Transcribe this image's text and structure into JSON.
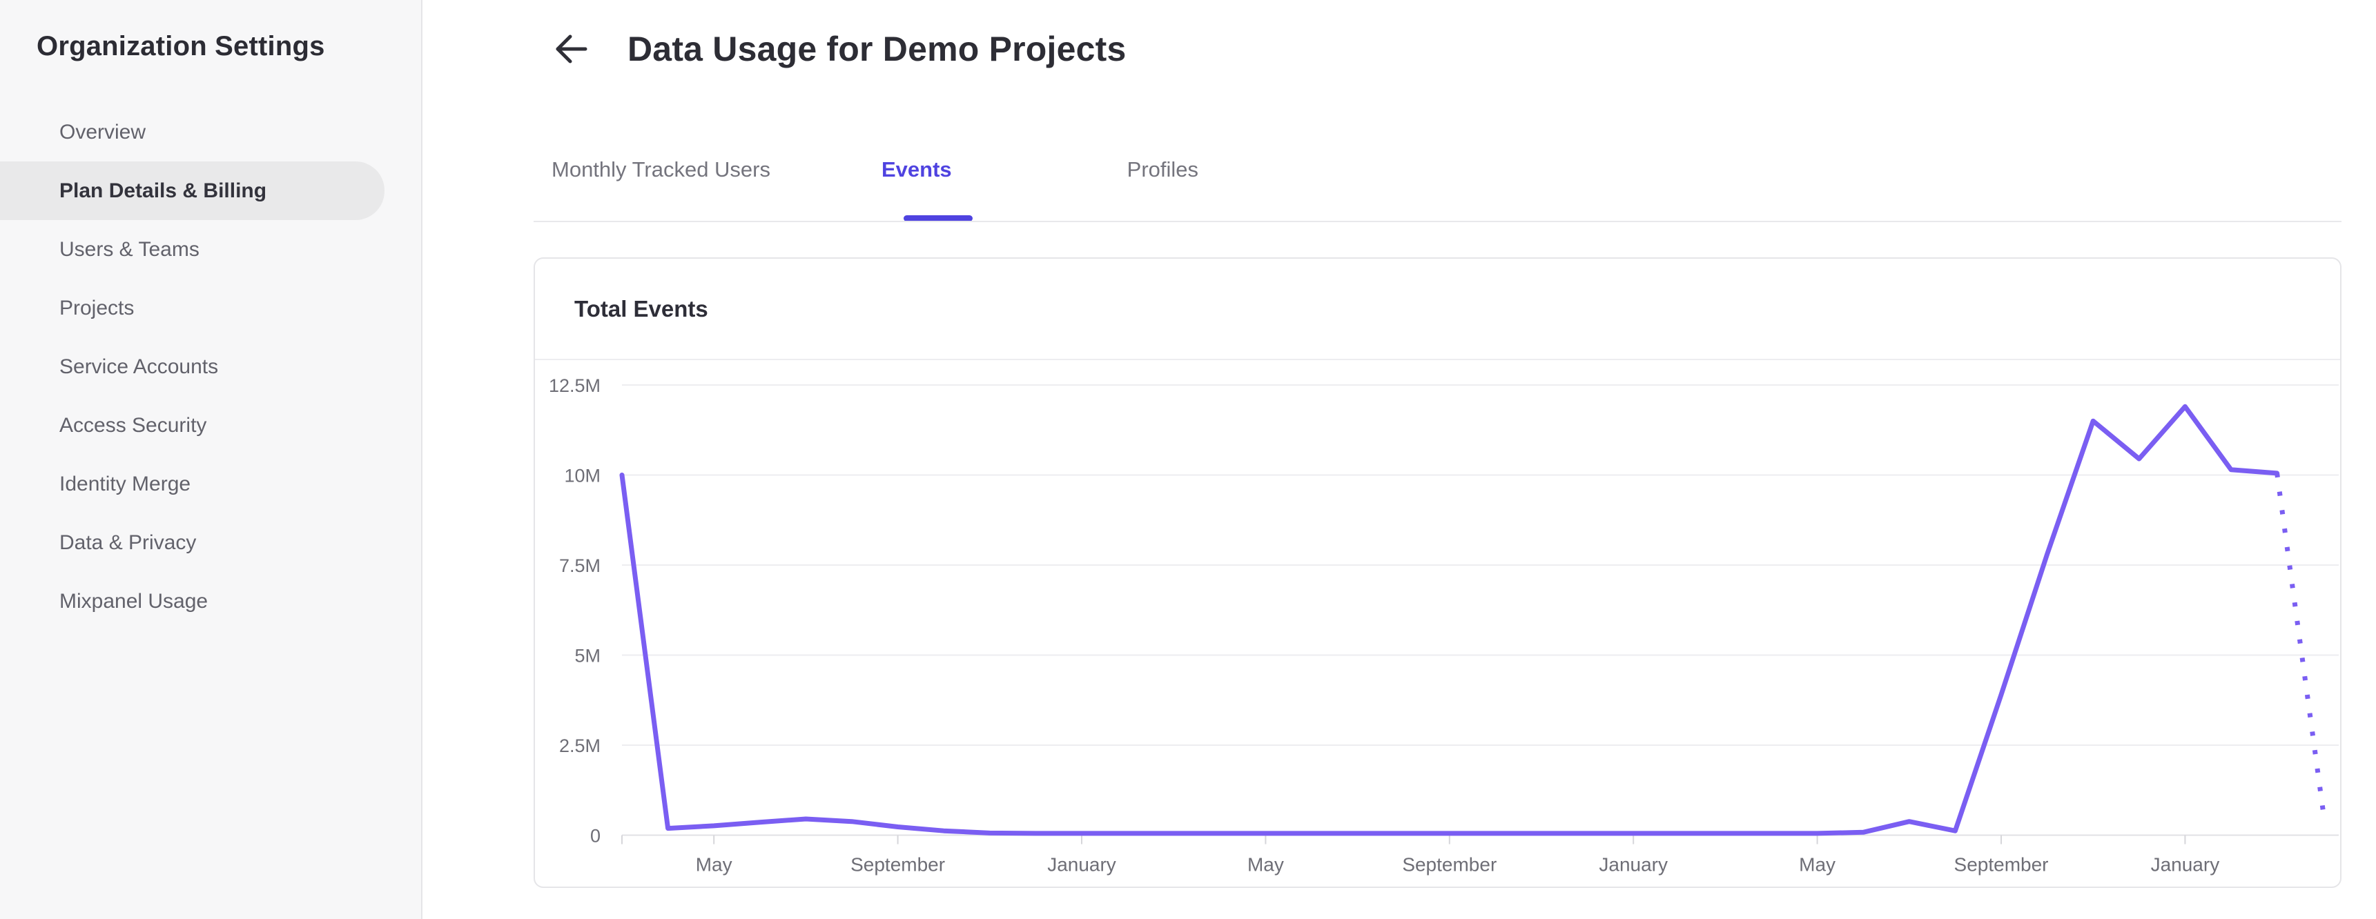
{
  "sidebar": {
    "title": "Organization Settings",
    "items": [
      {
        "label": "Overview",
        "selected": false
      },
      {
        "label": "Plan Details & Billing",
        "selected": true
      },
      {
        "label": "Users & Teams",
        "selected": false
      },
      {
        "label": "Projects",
        "selected": false
      },
      {
        "label": "Service Accounts",
        "selected": false
      },
      {
        "label": "Access Security",
        "selected": false
      },
      {
        "label": "Identity Merge",
        "selected": false
      },
      {
        "label": "Data & Privacy",
        "selected": false
      },
      {
        "label": "Mixpanel Usage",
        "selected": false
      }
    ]
  },
  "header": {
    "title": "Data Usage for Demo Projects",
    "back_icon": "left-arrow-icon"
  },
  "tabs": {
    "items": [
      {
        "label": "Monthly Tracked Users",
        "active": false
      },
      {
        "label": "Events",
        "active": true
      },
      {
        "label": "Profiles",
        "active": false
      }
    ]
  },
  "card": {
    "title": "Total Events"
  },
  "colors": {
    "accent": "#4f43e0",
    "chart_line": "#7a5ef2",
    "sidebar_selected_bg": "#e9e9ea",
    "grid_line": "#ededf0",
    "axis_line": "#e1e1e5",
    "tick_mark": "#d6d6da",
    "axis_label": "#6e6e76"
  },
  "chart_data": {
    "type": "line",
    "title": "Total Events",
    "xlabel": "",
    "ylabel": "",
    "unit": "millions of events",
    "ylim": [
      0,
      12.5
    ],
    "grid": "horizontal",
    "legend_position": "none",
    "x_unit": "month_index",
    "y_ticks": [
      {
        "label": "0",
        "value": 0
      },
      {
        "label": "2.5M",
        "value": 2.5
      },
      {
        "label": "5M",
        "value": 5
      },
      {
        "label": "7.5M",
        "value": 7.5
      },
      {
        "label": "10M",
        "value": 10
      },
      {
        "label": "12.5M",
        "value": 12.5
      }
    ],
    "x_ticks": [
      {
        "label": "May",
        "index": 2
      },
      {
        "label": "September",
        "index": 6
      },
      {
        "label": "January",
        "index": 10
      },
      {
        "label": "May",
        "index": 14
      },
      {
        "label": "September",
        "index": 18
      },
      {
        "label": "January",
        "index": 22
      },
      {
        "label": "May",
        "index": 26
      },
      {
        "label": "September",
        "index": 30
      },
      {
        "label": "January",
        "index": 34
      }
    ],
    "series": [
      {
        "name": "Total Events",
        "style": "solid",
        "points": [
          [
            0,
            10.0
          ],
          [
            1,
            0.19
          ],
          [
            2,
            0.26
          ],
          [
            3,
            0.36
          ],
          [
            4,
            0.45
          ],
          [
            5,
            0.38
          ],
          [
            6,
            0.23
          ],
          [
            7,
            0.12
          ],
          [
            8,
            0.06
          ],
          [
            9,
            0.05
          ],
          [
            10,
            0.05
          ],
          [
            11,
            0.05
          ],
          [
            12,
            0.05
          ],
          [
            13,
            0.05
          ],
          [
            14,
            0.05
          ],
          [
            15,
            0.05
          ],
          [
            16,
            0.05
          ],
          [
            17,
            0.05
          ],
          [
            18,
            0.05
          ],
          [
            19,
            0.05
          ],
          [
            20,
            0.05
          ],
          [
            21,
            0.05
          ],
          [
            22,
            0.05
          ],
          [
            23,
            0.05
          ],
          [
            24,
            0.05
          ],
          [
            25,
            0.05
          ],
          [
            26,
            0.05
          ],
          [
            27,
            0.08
          ],
          [
            28,
            0.38
          ],
          [
            29,
            0.12
          ],
          [
            30,
            3.9
          ],
          [
            31,
            7.8
          ],
          [
            32,
            11.5
          ],
          [
            33,
            10.45
          ],
          [
            34,
            11.9
          ],
          [
            35,
            10.15
          ],
          [
            36,
            10.05
          ]
        ]
      },
      {
        "name": "Total Events (projected)",
        "style": "dotted",
        "points": [
          [
            36,
            10.05
          ],
          [
            37,
            0.7
          ]
        ]
      }
    ]
  }
}
